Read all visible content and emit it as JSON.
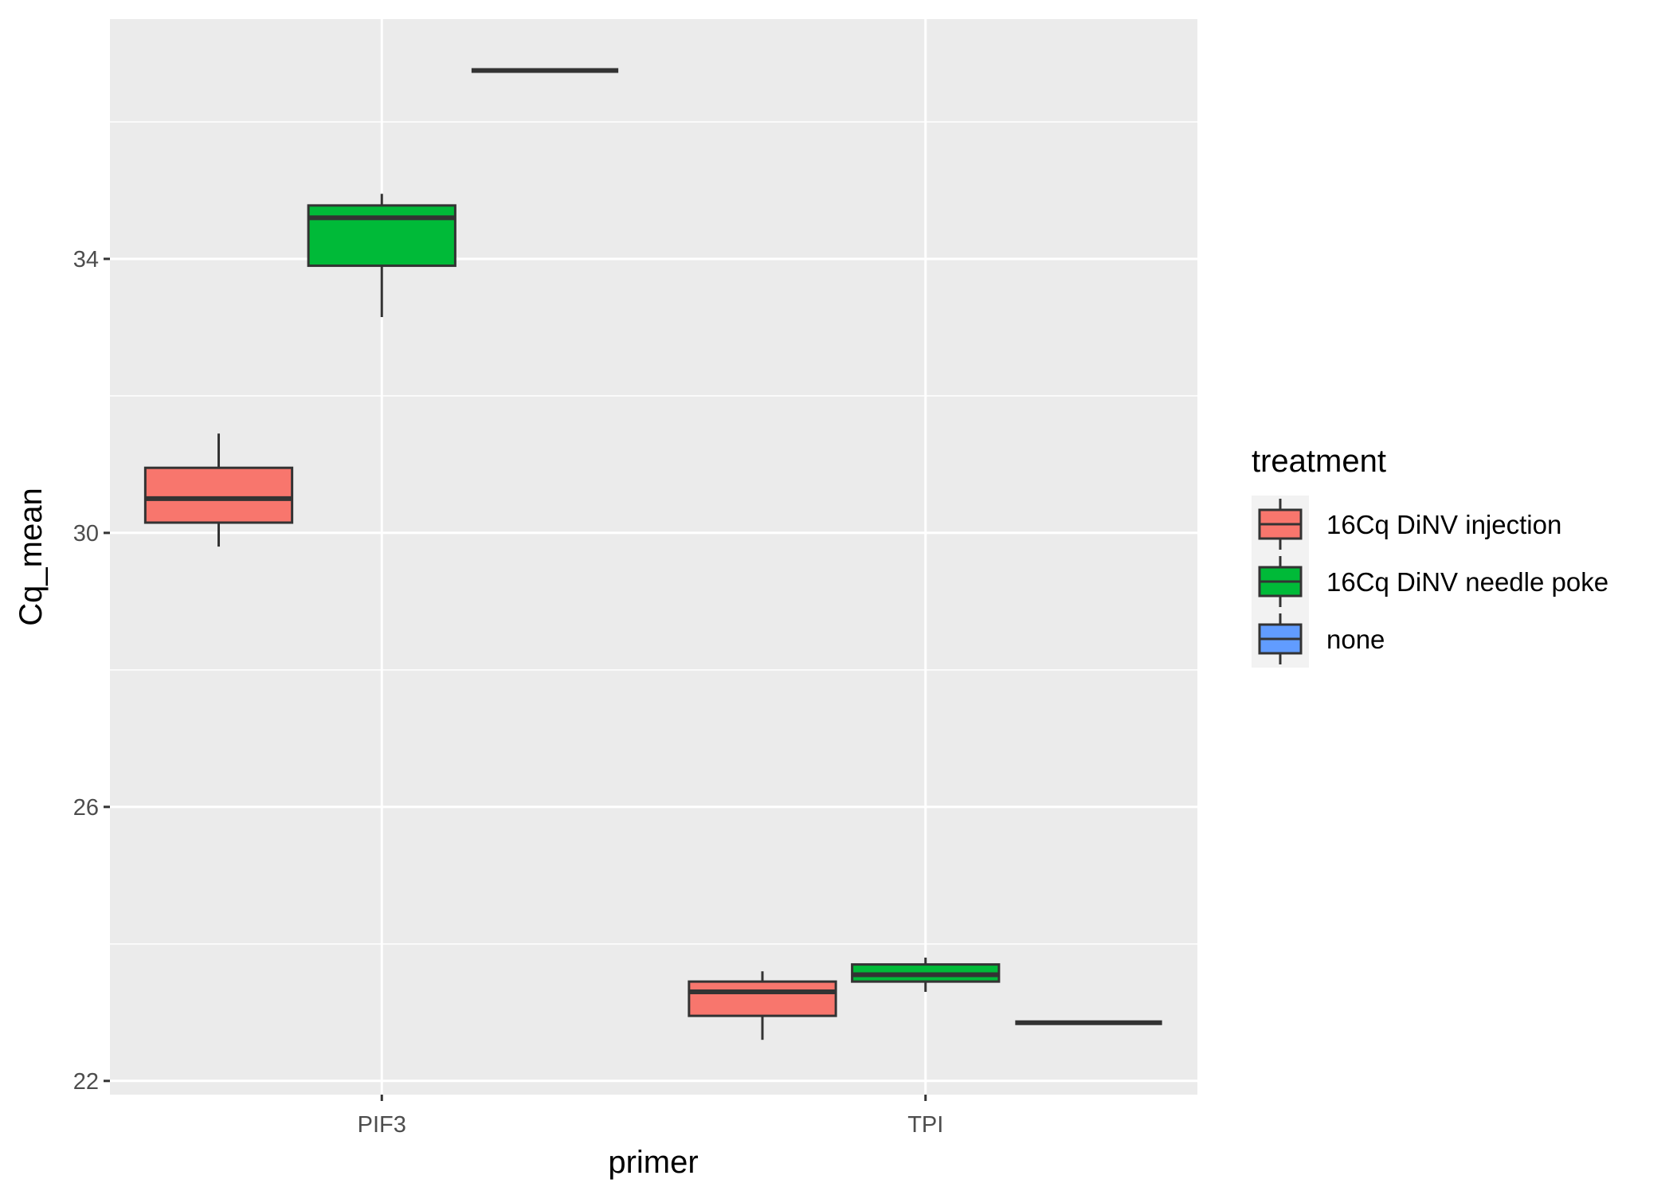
{
  "chart_data": {
    "type": "boxplot",
    "title": "",
    "xlabel": "primer",
    "ylabel": "Cq_mean",
    "categories": [
      "PIF3",
      "TPI"
    ],
    "ylim": [
      21.8,
      37.5
    ],
    "yticks": [
      22,
      26,
      30,
      34
    ],
    "grid": true,
    "legend": {
      "title": "treatment",
      "position": "right",
      "entries": [
        {
          "label": "16Cq DiNV injection",
          "color": "#F8766D"
        },
        {
          "label": "16Cq DiNV needle poke",
          "color": "#00BA38"
        },
        {
          "label": "none",
          "color": "#619CFF"
        }
      ]
    },
    "series": [
      {
        "name": "16Cq DiNV injection",
        "color": "#F8766D",
        "boxes": [
          {
            "category": "PIF3",
            "min": 29.8,
            "q1": 30.15,
            "median": 30.5,
            "q3": 30.95,
            "max": 31.45
          },
          {
            "category": "TPI",
            "min": 22.6,
            "q1": 22.95,
            "median": 23.3,
            "q3": 23.45,
            "max": 23.6
          }
        ]
      },
      {
        "name": "16Cq DiNV needle poke",
        "color": "#00BA38",
        "boxes": [
          {
            "category": "PIF3",
            "min": 33.15,
            "q1": 33.9,
            "median": 34.6,
            "q3": 34.78,
            "max": 34.95
          },
          {
            "category": "TPI",
            "min": 23.3,
            "q1": 23.45,
            "median": 23.55,
            "q3": 23.7,
            "max": 23.8
          }
        ]
      },
      {
        "name": "none",
        "color": "#619CFF",
        "boxes": [
          {
            "category": "PIF3",
            "min": 36.75,
            "q1": 36.75,
            "median": 36.75,
            "q3": 36.75,
            "max": 36.75
          },
          {
            "category": "TPI",
            "min": 22.85,
            "q1": 22.85,
            "median": 22.85,
            "q3": 22.85,
            "max": 22.85
          }
        ]
      }
    ]
  }
}
